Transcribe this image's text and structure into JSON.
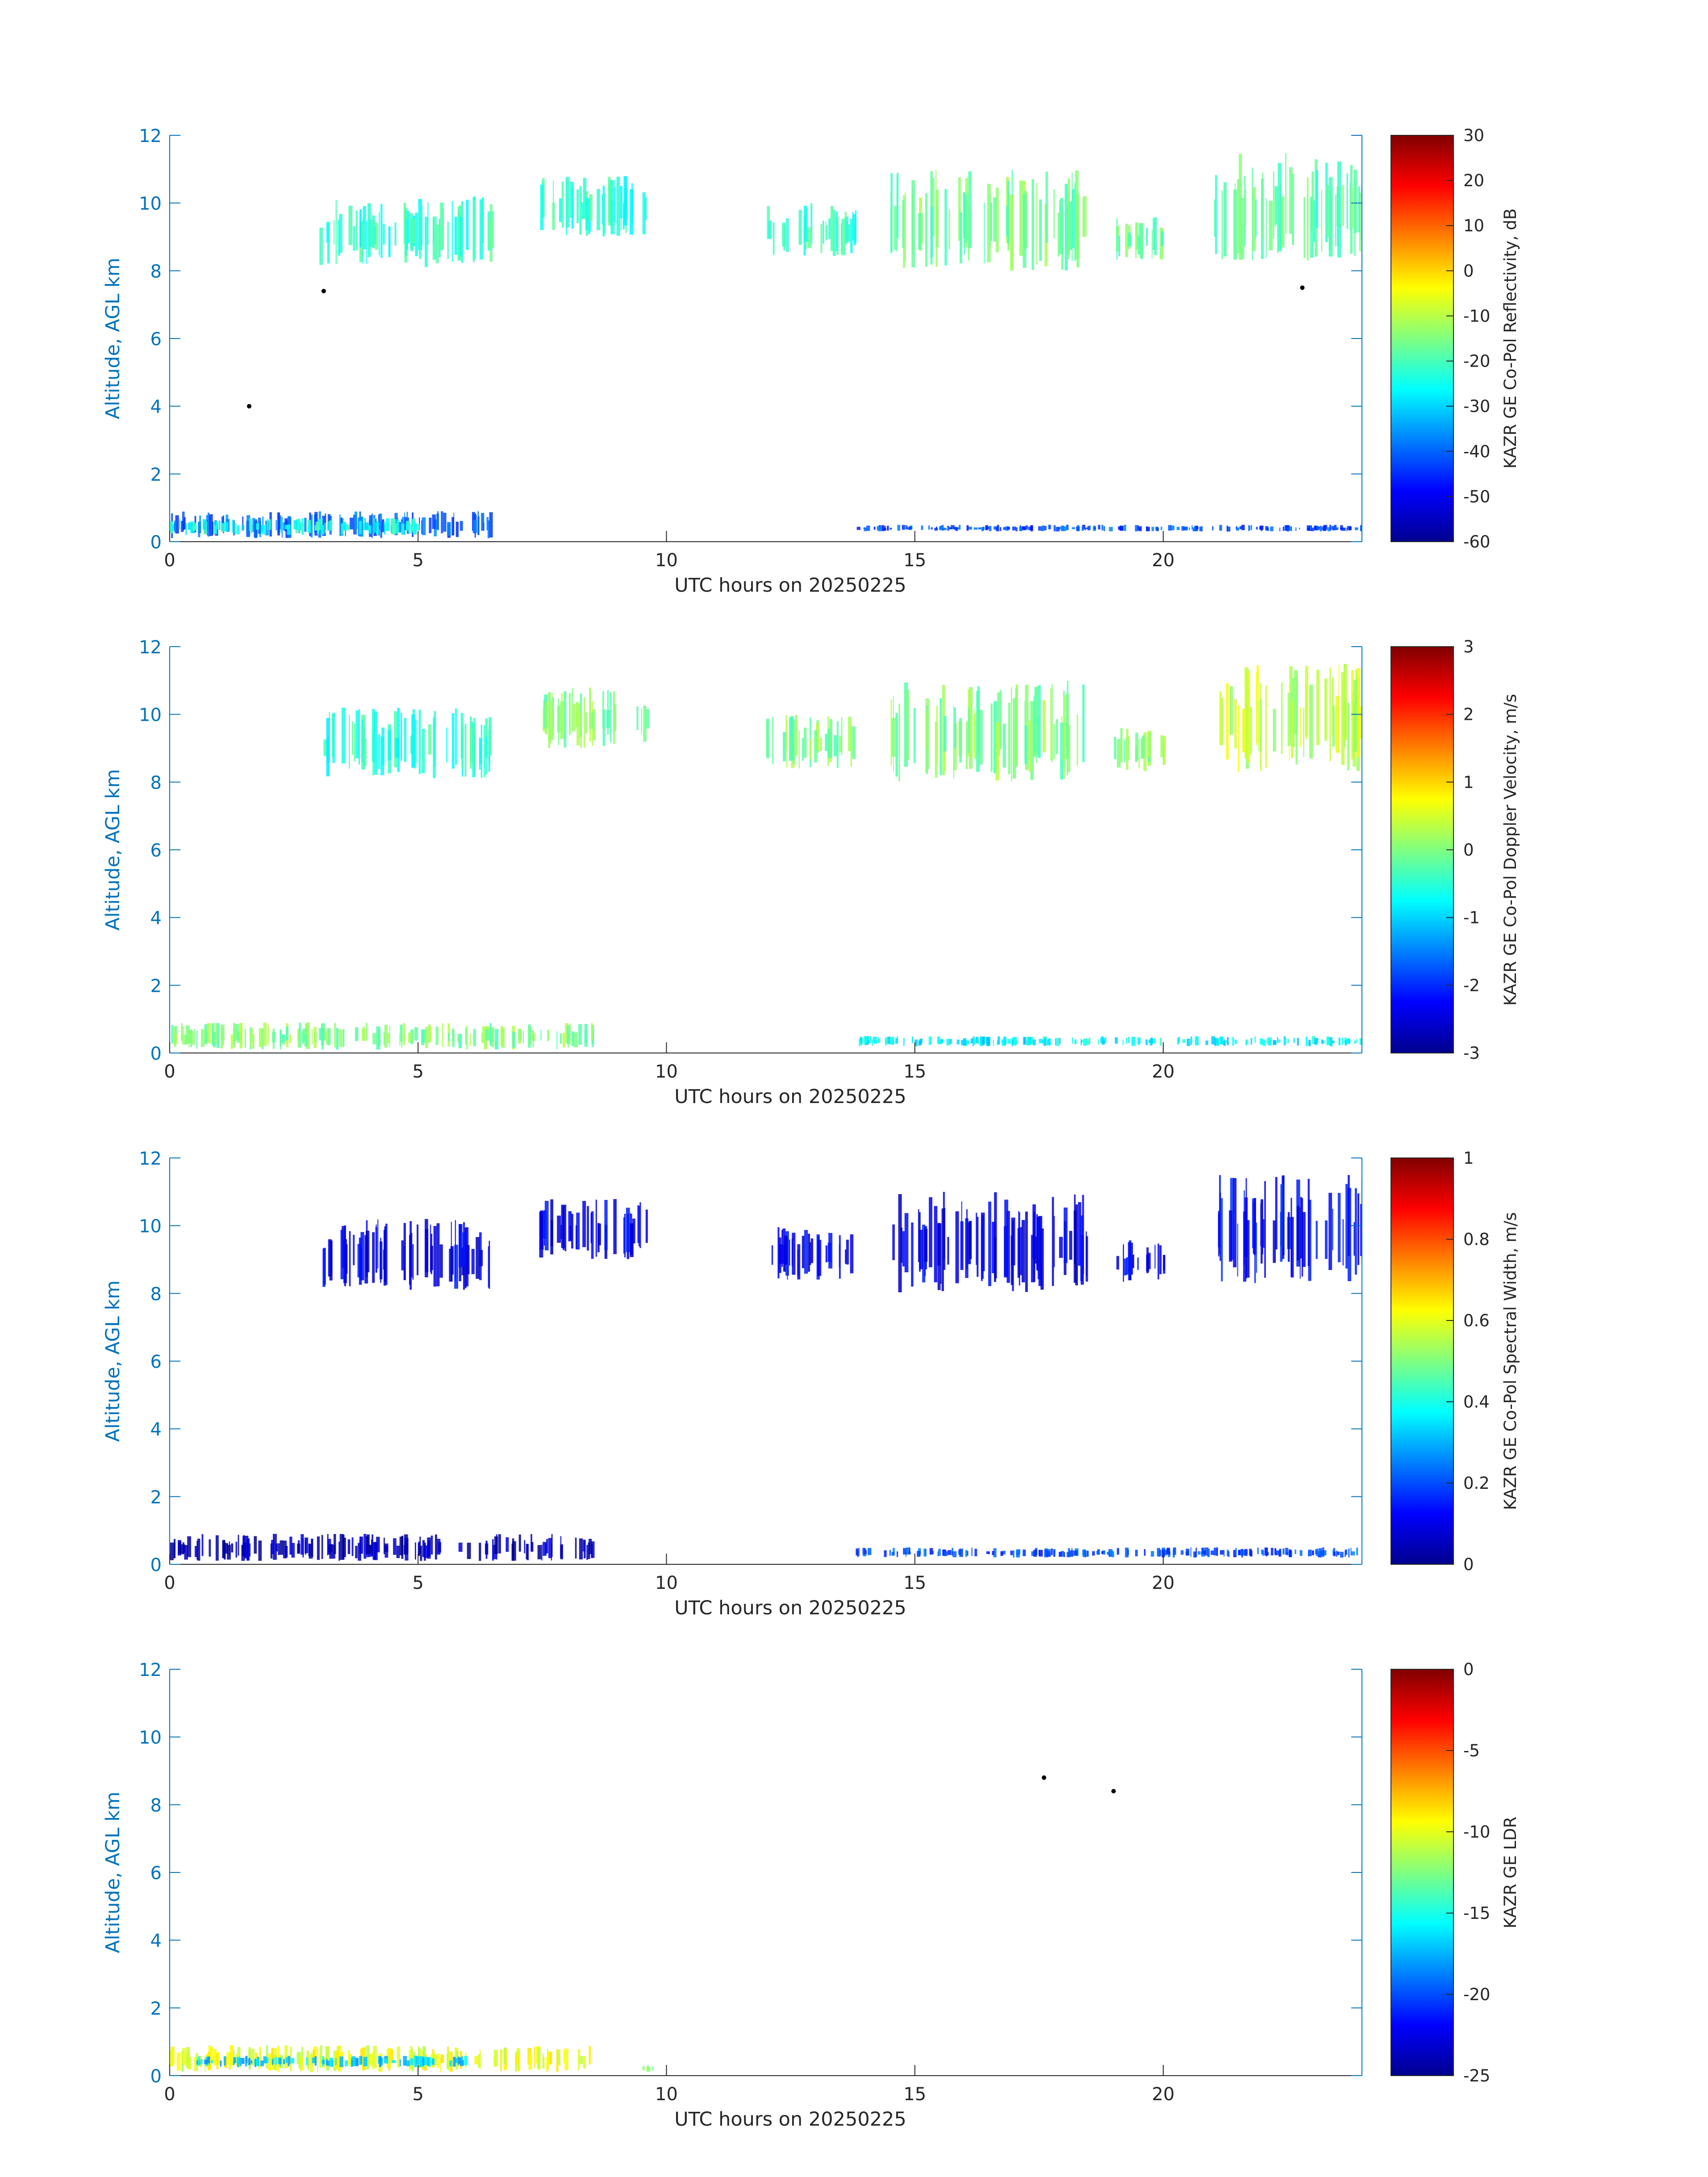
{
  "colors": {
    "axis_blue": "#0072BD",
    "text_dark": "#262626",
    "colormap": [
      "#00008F",
      "#0000FF",
      "#0080FF",
      "#00FFFF",
      "#80FF80",
      "#FFFF00",
      "#FF8000",
      "#FF0000",
      "#800000"
    ]
  },
  "chart_data": [
    {
      "type": "heatmap",
      "xlabel": "UTC hours on 20250225",
      "ylabel": "Altitude, AGL km",
      "xlim": [
        0,
        24
      ],
      "ylim": [
        0,
        12
      ],
      "xticks": [
        0,
        5,
        10,
        15,
        20
      ],
      "yticks": [
        0,
        2,
        4,
        6,
        8,
        10,
        12
      ],
      "colorbar": {
        "label": "KAZR GE Co-Pol Reflectivity, dB",
        "range": [
          -60,
          30
        ],
        "ticks": [
          30,
          20,
          10,
          0,
          -10,
          -20,
          -30,
          -40,
          -50,
          -60
        ]
      },
      "features": [
        {
          "x": [
            3.0,
            6.5
          ],
          "y": [
            8.1,
            10.2
          ],
          "value": -22
        },
        {
          "x": [
            7.4,
            9.6
          ],
          "y": [
            9.0,
            10.8
          ],
          "value": -22
        },
        {
          "x": [
            12.0,
            13.8
          ],
          "y": [
            8.4,
            10.0
          ],
          "value": -22
        },
        {
          "x": [
            14.5,
            18.5
          ],
          "y": [
            8.0,
            11.0
          ],
          "value": -16
        },
        {
          "x": [
            19.0,
            20.0
          ],
          "y": [
            8.3,
            9.6
          ],
          "value": -18
        },
        {
          "x": [
            21.0,
            24.0
          ],
          "y": [
            8.3,
            11.5
          ],
          "value": -18
        },
        {
          "x": [
            0.0,
            6.5
          ],
          "y": [
            0.1,
            0.9
          ],
          "value": -40
        },
        {
          "x": [
            0.0,
            5.0
          ],
          "y": [
            0.2,
            0.7
          ],
          "value": -25
        },
        {
          "x": [
            13.8,
            24.0
          ],
          "y": [
            0.3,
            0.5
          ],
          "value": -42
        }
      ],
      "points": [
        {
          "x": 3.1,
          "y": 7.4
        },
        {
          "x": 1.6,
          "y": 4.0
        },
        {
          "x": 22.8,
          "y": 7.5
        }
      ]
    },
    {
      "type": "heatmap",
      "xlabel": "UTC hours on 20250225",
      "ylabel": "Altitude, AGL km",
      "xlim": [
        0,
        24
      ],
      "ylim": [
        0,
        12
      ],
      "xticks": [
        0,
        5,
        10,
        15,
        20
      ],
      "yticks": [
        0,
        2,
        4,
        6,
        8,
        10,
        12
      ],
      "colorbar": {
        "label": "KAZR GE Co-Pol Doppler Velocity, m/s",
        "range": [
          -3,
          3
        ],
        "ticks": [
          3,
          2,
          1,
          0,
          -1,
          -2,
          -3
        ]
      },
      "features": [
        {
          "x": [
            3.0,
            6.5
          ],
          "y": [
            8.1,
            10.2
          ],
          "value": -0.5
        },
        {
          "x": [
            7.4,
            9.6
          ],
          "y": [
            9.0,
            10.8
          ],
          "value": 0.0
        },
        {
          "x": [
            12.0,
            13.8
          ],
          "y": [
            8.4,
            10.0
          ],
          "value": 0.0
        },
        {
          "x": [
            14.5,
            18.5
          ],
          "y": [
            8.0,
            11.0
          ],
          "value": 0.0
        },
        {
          "x": [
            19.0,
            20.0
          ],
          "y": [
            8.3,
            9.6
          ],
          "value": 0.0
        },
        {
          "x": [
            21.0,
            24.0
          ],
          "y": [
            8.3,
            11.5
          ],
          "value": 0.4
        },
        {
          "x": [
            0.0,
            8.5
          ],
          "y": [
            0.1,
            0.9
          ],
          "value": 0.0
        },
        {
          "x": [
            13.8,
            24.0
          ],
          "y": [
            0.2,
            0.5
          ],
          "value": -0.8
        }
      ],
      "points": []
    },
    {
      "type": "heatmap",
      "xlabel": "UTC hours on 20250225",
      "ylabel": "Altitude, AGL km",
      "xlim": [
        0,
        24
      ],
      "ylim": [
        0,
        12
      ],
      "xticks": [
        0,
        5,
        10,
        15,
        20
      ],
      "yticks": [
        0,
        2,
        4,
        6,
        8,
        10,
        12
      ],
      "colorbar": {
        "label": "KAZR GE Co-Pol Spectral Width, m/s",
        "range": [
          0,
          1
        ],
        "ticks": [
          1,
          0.8,
          0.6,
          0.4,
          0.2,
          0
        ]
      },
      "features": [
        {
          "x": [
            3.0,
            6.5
          ],
          "y": [
            8.1,
            10.2
          ],
          "value": 0.1
        },
        {
          "x": [
            7.4,
            9.6
          ],
          "y": [
            9.0,
            10.8
          ],
          "value": 0.1
        },
        {
          "x": [
            12.0,
            13.8
          ],
          "y": [
            8.4,
            10.0
          ],
          "value": 0.1
        },
        {
          "x": [
            14.5,
            18.5
          ],
          "y": [
            8.0,
            11.0
          ],
          "value": 0.1
        },
        {
          "x": [
            19.0,
            20.0
          ],
          "y": [
            8.3,
            9.6
          ],
          "value": 0.1
        },
        {
          "x": [
            21.0,
            24.0
          ],
          "y": [
            8.3,
            11.5
          ],
          "value": 0.12
        },
        {
          "x": [
            0.0,
            8.5
          ],
          "y": [
            0.1,
            0.9
          ],
          "value": 0.05
        },
        {
          "x": [
            13.8,
            24.0
          ],
          "y": [
            0.2,
            0.5
          ],
          "value": 0.2
        }
      ],
      "points": []
    },
    {
      "type": "heatmap",
      "xlabel": "UTC hours on 20250225",
      "ylabel": "Altitude, AGL km",
      "xlim": [
        0,
        24
      ],
      "ylim": [
        0,
        12
      ],
      "xticks": [
        0,
        5,
        10,
        15,
        20
      ],
      "yticks": [
        0,
        2,
        4,
        6,
        8,
        10,
        12
      ],
      "colorbar": {
        "label": "KAZR GE LDR",
        "range": [
          -25,
          0
        ],
        "ticks": [
          0,
          -5,
          -10,
          -15,
          -20,
          -25
        ]
      },
      "features": [
        {
          "x": [
            0.0,
            8.5
          ],
          "y": [
            0.1,
            0.9
          ],
          "value": -10
        },
        {
          "x": [
            0.5,
            6.0
          ],
          "y": [
            0.25,
            0.6
          ],
          "value": -17
        },
        {
          "x": [
            9.5,
            9.8
          ],
          "y": [
            0.1,
            0.3
          ],
          "value": -12
        }
      ],
      "points": [
        {
          "x": 17.6,
          "y": 8.8
        },
        {
          "x": 19.0,
          "y": 8.4
        }
      ]
    }
  ]
}
